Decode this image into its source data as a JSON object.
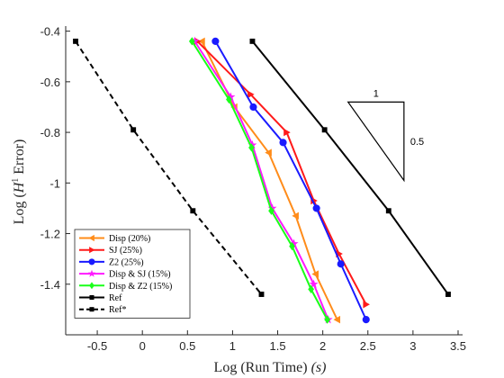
{
  "chart_data": {
    "type": "line",
    "xlabel": "Log (Run Time) (s)",
    "ylabel": "Log (H¹ Error)",
    "xlim": [
      -0.85,
      3.55
    ],
    "ylim": [
      -1.6,
      -0.38
    ],
    "xticks": [
      -0.5,
      0,
      0.5,
      1,
      1.5,
      2,
      2.5,
      3,
      3.5
    ],
    "xtick_labels": [
      "-0.5",
      "0",
      "0.5",
      "1",
      "1.5",
      "2",
      "2.5",
      "3",
      "3.5"
    ],
    "yticks": [
      -1.4,
      -1.2,
      -1,
      -0.8,
      -0.6,
      -0.4
    ],
    "ytick_labels": [
      "-1.4",
      "-1.2",
      "-1",
      "-0.8",
      "-0.6",
      "-0.4"
    ],
    "legend_position": "bottom-left",
    "series": [
      {
        "name": "Disp (20%)",
        "color": "#FF8C1A",
        "marker": "triangle-left",
        "dash": false,
        "x": [
          0.66,
          1.02,
          1.4,
          1.7,
          1.92,
          2.16
        ],
        "y": [
          -0.44,
          -0.7,
          -0.88,
          -1.13,
          -1.36,
          -1.54
        ]
      },
      {
        "name": "SJ (25%)",
        "color": "#FF1A1A",
        "marker": "triangle-right",
        "dash": false,
        "x": [
          0.61,
          1.2,
          1.6,
          1.9,
          2.18,
          2.48
        ],
        "y": [
          -0.44,
          -0.65,
          -0.8,
          -1.07,
          -1.28,
          -1.48
        ]
      },
      {
        "name": "Z2 (25%)",
        "color": "#1A1AFF",
        "marker": "circle",
        "dash": false,
        "x": [
          0.81,
          1.23,
          1.56,
          1.93,
          2.2,
          2.48
        ],
        "y": [
          -0.44,
          -0.7,
          -0.84,
          -1.1,
          -1.32,
          -1.54
        ]
      },
      {
        "name": "Disp & SJ (15%)",
        "color": "#FF1AFF",
        "marker": "pentagram",
        "dash": false,
        "x": [
          0.58,
          0.98,
          1.22,
          1.44,
          1.68,
          1.9,
          2.06
        ],
        "y": [
          -0.44,
          -0.66,
          -0.85,
          -1.1,
          -1.24,
          -1.4,
          -1.54
        ]
      },
      {
        "name": "Disp & Z2 (15%)",
        "color": "#1AFF1A",
        "marker": "diamond",
        "dash": false,
        "x": [
          0.55,
          0.96,
          1.21,
          1.43,
          1.66,
          1.87,
          2.05
        ],
        "y": [
          -0.44,
          -0.67,
          -0.86,
          -1.11,
          -1.25,
          -1.42,
          -1.54
        ]
      },
      {
        "name": "Ref",
        "color": "#000000",
        "marker": "square",
        "dash": false,
        "x": [
          1.22,
          2.02,
          2.73,
          3.39
        ],
        "y": [
          -0.44,
          -0.79,
          -1.11,
          -1.44
        ]
      },
      {
        "name": "Ref*",
        "color": "#000000",
        "marker": "square",
        "dash": true,
        "x": [
          -0.74,
          -0.1,
          0.56,
          1.32
        ],
        "y": [
          -0.44,
          -0.79,
          -1.11,
          -1.44
        ]
      }
    ],
    "slope_triangle": {
      "run_label": "1",
      "rise_label": "0.5",
      "vertices": [
        [
          2.28,
          -0.68
        ],
        [
          2.9,
          -0.68
        ],
        [
          2.9,
          -0.99
        ]
      ]
    }
  }
}
